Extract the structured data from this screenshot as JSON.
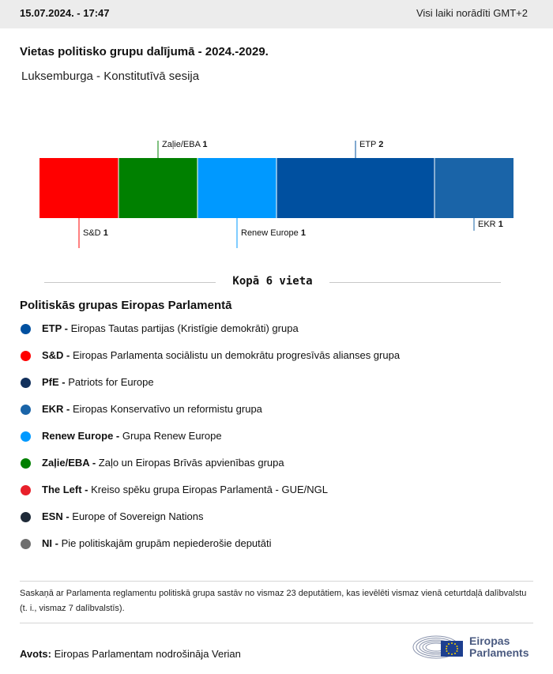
{
  "header": {
    "datetime": "15.07.2024. - 17:47",
    "timezone_note": "Visi laiki norādīti GMT+2"
  },
  "title": "Vietas politisko grupu dalījumā - 2024.-2029.",
  "subtitle": "Luksemburga - Konstitutīvā sesija",
  "chart_data": {
    "type": "bar",
    "orientation": "horizontal-stacked",
    "total": 6,
    "segments": [
      {
        "name": "S&D",
        "seats": 1,
        "color": "#ff0000",
        "label_side": "bottom"
      },
      {
        "name": "Zaļie/EBA",
        "seats": 1,
        "color": "#008000",
        "label_side": "top"
      },
      {
        "name": "Renew Europe",
        "seats": 1,
        "color": "#0099ff",
        "label_side": "bottom"
      },
      {
        "name": "ETP",
        "seats": 2,
        "color": "#0050a0",
        "label_side": "top"
      },
      {
        "name": "EKR",
        "seats": 1,
        "color": "#1a64a8",
        "label_side": "bottom"
      }
    ]
  },
  "total_label": "Kopā 6 vieta",
  "legend": {
    "title": "Politiskās grupas Eiropas Parlamentā",
    "items": [
      {
        "abbr": "ETP -",
        "name": "Eiropas Tautas partijas (Kristīgie demokrāti) grupa",
        "color": "#0050a0"
      },
      {
        "abbr": "S&D -",
        "name": "Eiropas Parlamenta sociālistu un demokrātu progresīvās alianses grupa",
        "color": "#ff0000"
      },
      {
        "abbr": "PfE -",
        "name": "Patriots for Europe",
        "color": "#12305c"
      },
      {
        "abbr": "EKR -",
        "name": "Eiropas Konservatīvo un reformistu grupa",
        "color": "#1a64a8"
      },
      {
        "abbr": "Renew Europe -",
        "name": "Grupa Renew Europe",
        "color": "#0099ff"
      },
      {
        "abbr": "Zaļie/EBA -",
        "name": "Zaļo un Eiropas Brīvās apvienības grupa",
        "color": "#008000"
      },
      {
        "abbr": "The Left -",
        "name": "Kreiso spēku grupa Eiropas Parlamentā - GUE/NGL",
        "color": "#e8202a"
      },
      {
        "abbr": "ESN -",
        "name": "Europe of Sovereign Nations",
        "color": "#1e2a38"
      },
      {
        "abbr": "NI -",
        "name": "Pie politiskajām grupām nepiederošie deputāti",
        "color": "#6e6e6e"
      }
    ]
  },
  "note": "Saskaņā ar Parlamenta reglamentu politiskā grupa sastāv no vismaz 23 deputātiem, kas ievēlēti vismaz vienā ceturtdaļā dalībvalstu (t. i., vismaz 7 dalībvalstīs).",
  "source": {
    "label": "Avots:",
    "text": "Eiropas Parlamentam nodrošināja Verian"
  },
  "logo": {
    "line1": "Eiropas",
    "line2": "Parlaments"
  }
}
